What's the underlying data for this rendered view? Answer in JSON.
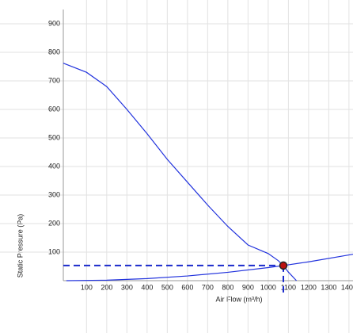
{
  "chart_data": {
    "type": "line",
    "x_label": "Air Flow (m³/h)",
    "y_label": "Static Pressure (Pa)",
    "xlim": [
      -15,
      1420
    ],
    "ylim": [
      0,
      950
    ],
    "xticks": [
      100,
      200,
      300,
      400,
      500,
      600,
      700,
      800,
      900,
      1000,
      1100,
      1200,
      1300,
      1400
    ],
    "yticks": [
      100,
      200,
      300,
      400,
      500,
      600,
      700,
      800,
      900
    ],
    "grid": true,
    "series": [
      {
        "color": "#2233dd",
        "x": [
          -15,
          100,
          200,
          300,
          400,
          500,
          600,
          700,
          800,
          900,
          1000,
          1050,
          1075,
          1100,
          1140
        ],
        "values": [
          762,
          730,
          680,
          600,
          515,
          425,
          345,
          265,
          190,
          125,
          95,
          70,
          53,
          30,
          0
        ]
      },
      {
        "color": "#2233dd",
        "x": [
          0,
          200,
          400,
          600,
          800,
          1000,
          1075,
          1200,
          1420
        ],
        "values": [
          0,
          1.8,
          7.3,
          16.5,
          29.4,
          45.9,
          53,
          66,
          92.5
        ]
      }
    ],
    "operating_point": {
      "x": 1075,
      "y": 53,
      "color": "#bb1111",
      "line_color": "#1a2acc"
    }
  }
}
